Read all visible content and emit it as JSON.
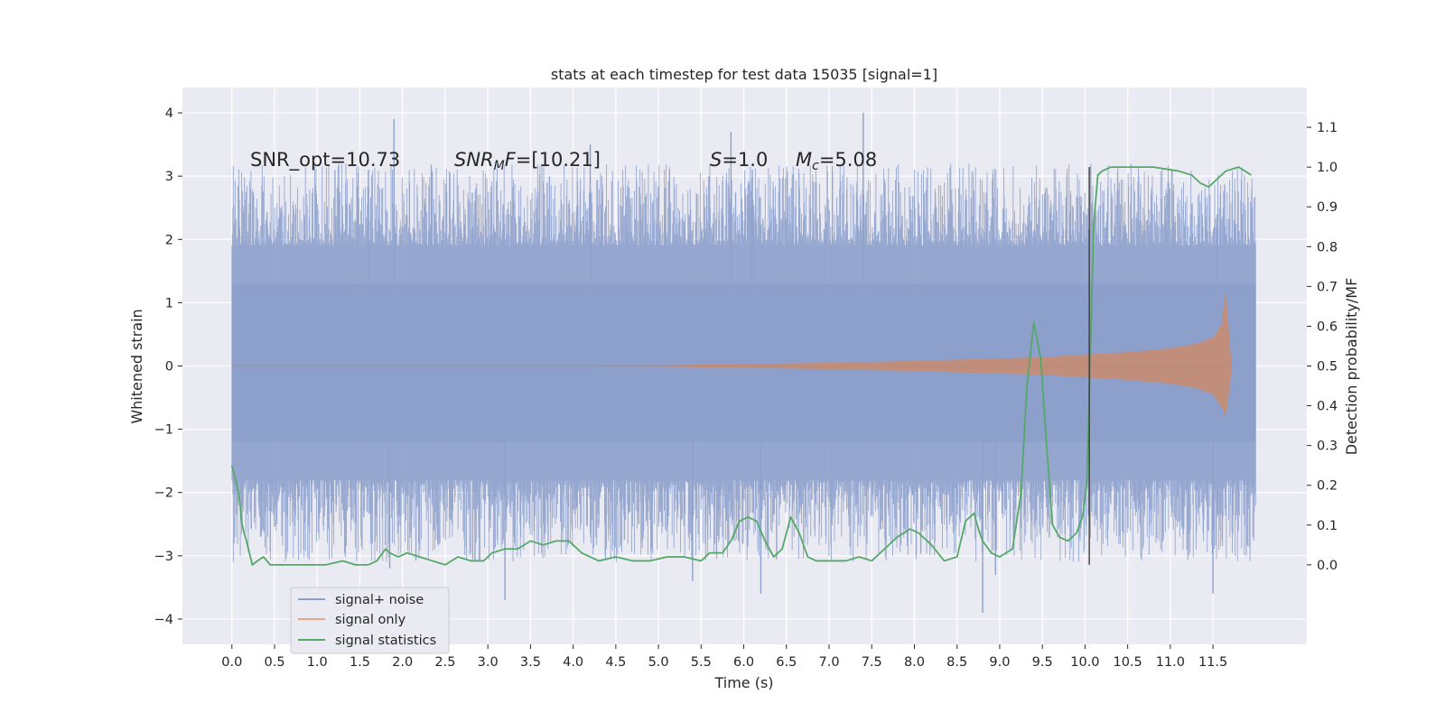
{
  "chart_data": {
    "type": "line",
    "title": "stats at each timestep for test data 15035 [signal=1]",
    "xlabel": "Time (s)",
    "ylabel": "Whitened strain",
    "ylabel_right": "Detection probability/MF",
    "xlim": [
      -0.58,
      12.6
    ],
    "ylim": [
      -4.4,
      4.4
    ],
    "ylim_right": [
      -0.2,
      1.2
    ],
    "x_ticks": [
      0.0,
      0.5,
      1.0,
      1.5,
      2.0,
      2.5,
      3.0,
      3.5,
      4.0,
      4.5,
      5.0,
      5.5,
      6.0,
      6.5,
      7.0,
      7.5,
      8.0,
      8.5,
      9.0,
      9.5,
      10.0,
      10.5,
      11.0,
      11.5
    ],
    "x_tick_labels": [
      "0.0",
      "0.5",
      "1.0",
      "1.5",
      "2.0",
      "2.5",
      "3.0",
      "3.5",
      "4.0",
      "4.5",
      "5.0",
      "5.5",
      "6.0",
      "6.5",
      "7.0",
      "7.5",
      "8.0",
      "8.5",
      "9.0",
      "9.5",
      "10.0",
      "10.5",
      "11.0",
      "11.5"
    ],
    "y_ticks": [
      -4,
      -3,
      -2,
      -1,
      0,
      1,
      2,
      3,
      4
    ],
    "y_tick_labels": [
      "−4",
      "−3",
      "−2",
      "−1",
      "0",
      "1",
      "2",
      "3",
      "4"
    ],
    "y_right_ticks": [
      0.0,
      0.1,
      0.2,
      0.3,
      0.4,
      0.5,
      0.6,
      0.7,
      0.8,
      0.9,
      1.0,
      1.1
    ],
    "y_right_tick_labels": [
      "0.0",
      "0.1",
      "0.2",
      "0.3",
      "0.4",
      "0.5",
      "0.6",
      "0.7",
      "0.8",
      "0.9",
      "1.0",
      "1.1"
    ],
    "grid": true,
    "legend_position": "lower-left",
    "annotations": [
      {
        "key": "snr_opt",
        "text": "SNR_opt=10.73"
      },
      {
        "key": "snr_mf",
        "text": "SNR_MF=[10.21]"
      },
      {
        "key": "s",
        "text": "S=1.0"
      },
      {
        "key": "mc",
        "text": "M_c=5.08"
      }
    ],
    "vline_x": 10.05,
    "noise_series": {
      "name": "signal+ noise",
      "color": "#8da0cb",
      "t_start": 0.0,
      "t_end": 12.0,
      "inner_band": [
        -1.2,
        1.3
      ],
      "typical_extent": [
        -2.4,
        2.5
      ],
      "spikes_up": [
        [
          1.9,
          3.9
        ],
        [
          7.4,
          4.0
        ],
        [
          1.6,
          3.1
        ],
        [
          6.1,
          3.1
        ],
        [
          5.85,
          3.7
        ],
        [
          4.2,
          3.5
        ],
        [
          11.55,
          2.4
        ]
      ],
      "spikes_down": [
        [
          3.2,
          -3.7
        ],
        [
          8.8,
          -3.9
        ],
        [
          6.2,
          -3.6
        ],
        [
          5.4,
          -3.4
        ],
        [
          8.95,
          -3.3
        ],
        [
          11.5,
          -3.6
        ],
        [
          1.85,
          -3.2
        ]
      ]
    },
    "series": [
      {
        "name": "signal only",
        "color": "#dd8452",
        "envelope": {
          "x": [
            0.0,
            2.0,
            4.0,
            5.0,
            6.0,
            7.0,
            8.0,
            9.0,
            9.5,
            10.0,
            10.5,
            11.0,
            11.3,
            11.5,
            11.6,
            11.65,
            11.7,
            11.72,
            11.75,
            12.0
          ],
          "upper": [
            0.0,
            0.0,
            0.005,
            0.01,
            0.03,
            0.05,
            0.08,
            0.12,
            0.14,
            0.18,
            0.22,
            0.28,
            0.35,
            0.45,
            0.65,
            1.2,
            0.3,
            0.0,
            0.0,
            0.0
          ],
          "lower": [
            0.0,
            0.0,
            -0.005,
            -0.01,
            -0.03,
            -0.05,
            -0.08,
            -0.12,
            -0.14,
            -0.18,
            -0.22,
            -0.28,
            -0.35,
            -0.45,
            -0.65,
            -0.8,
            -0.3,
            0.0,
            0.0,
            0.0
          ]
        }
      },
      {
        "name": "signal statistics",
        "color": "#55a868",
        "x": [
          0.0,
          0.08,
          0.12,
          0.17,
          0.24,
          0.3,
          0.37,
          0.45,
          0.55,
          0.7,
          0.9,
          1.1,
          1.3,
          1.45,
          1.6,
          1.7,
          1.8,
          1.85,
          1.95,
          2.05,
          2.2,
          2.35,
          2.5,
          2.65,
          2.8,
          2.95,
          3.05,
          3.2,
          3.35,
          3.5,
          3.65,
          3.8,
          3.95,
          4.1,
          4.3,
          4.5,
          4.7,
          4.9,
          5.1,
          5.3,
          5.5,
          5.6,
          5.75,
          5.85,
          5.95,
          6.05,
          6.15,
          6.25,
          6.35,
          6.45,
          6.55,
          6.65,
          6.75,
          6.85,
          6.95,
          7.05,
          7.2,
          7.35,
          7.5,
          7.65,
          7.8,
          7.95,
          8.05,
          8.2,
          8.35,
          8.5,
          8.6,
          8.7,
          8.75,
          8.8,
          8.9,
          9.0,
          9.15,
          9.25,
          9.32,
          9.4,
          9.48,
          9.55,
          9.62,
          9.7,
          9.8,
          9.9,
          9.97,
          10.02,
          10.06,
          10.1,
          10.15,
          10.2,
          10.3,
          10.5,
          10.8,
          11.1,
          11.25,
          11.35,
          11.45,
          11.55,
          11.65,
          11.8,
          11.95
        ],
        "y": [
          0.25,
          0.18,
          0.1,
          0.06,
          0.0,
          0.01,
          0.02,
          0.0,
          0.0,
          0.0,
          0.0,
          0.0,
          0.01,
          0.0,
          0.0,
          0.01,
          0.04,
          0.03,
          0.02,
          0.03,
          0.02,
          0.01,
          0.0,
          0.02,
          0.01,
          0.01,
          0.03,
          0.04,
          0.04,
          0.06,
          0.05,
          0.06,
          0.06,
          0.03,
          0.01,
          0.02,
          0.01,
          0.01,
          0.02,
          0.02,
          0.01,
          0.03,
          0.03,
          0.06,
          0.11,
          0.12,
          0.11,
          0.06,
          0.02,
          0.04,
          0.12,
          0.08,
          0.02,
          0.01,
          0.01,
          0.01,
          0.01,
          0.02,
          0.01,
          0.04,
          0.07,
          0.09,
          0.08,
          0.05,
          0.01,
          0.02,
          0.11,
          0.13,
          0.09,
          0.06,
          0.03,
          0.02,
          0.04,
          0.18,
          0.45,
          0.61,
          0.52,
          0.3,
          0.1,
          0.07,
          0.06,
          0.08,
          0.12,
          0.2,
          0.5,
          0.85,
          0.98,
          0.99,
          1.0,
          1.0,
          1.0,
          0.99,
          0.98,
          0.96,
          0.95,
          0.97,
          0.99,
          1.0,
          0.98
        ]
      }
    ]
  }
}
